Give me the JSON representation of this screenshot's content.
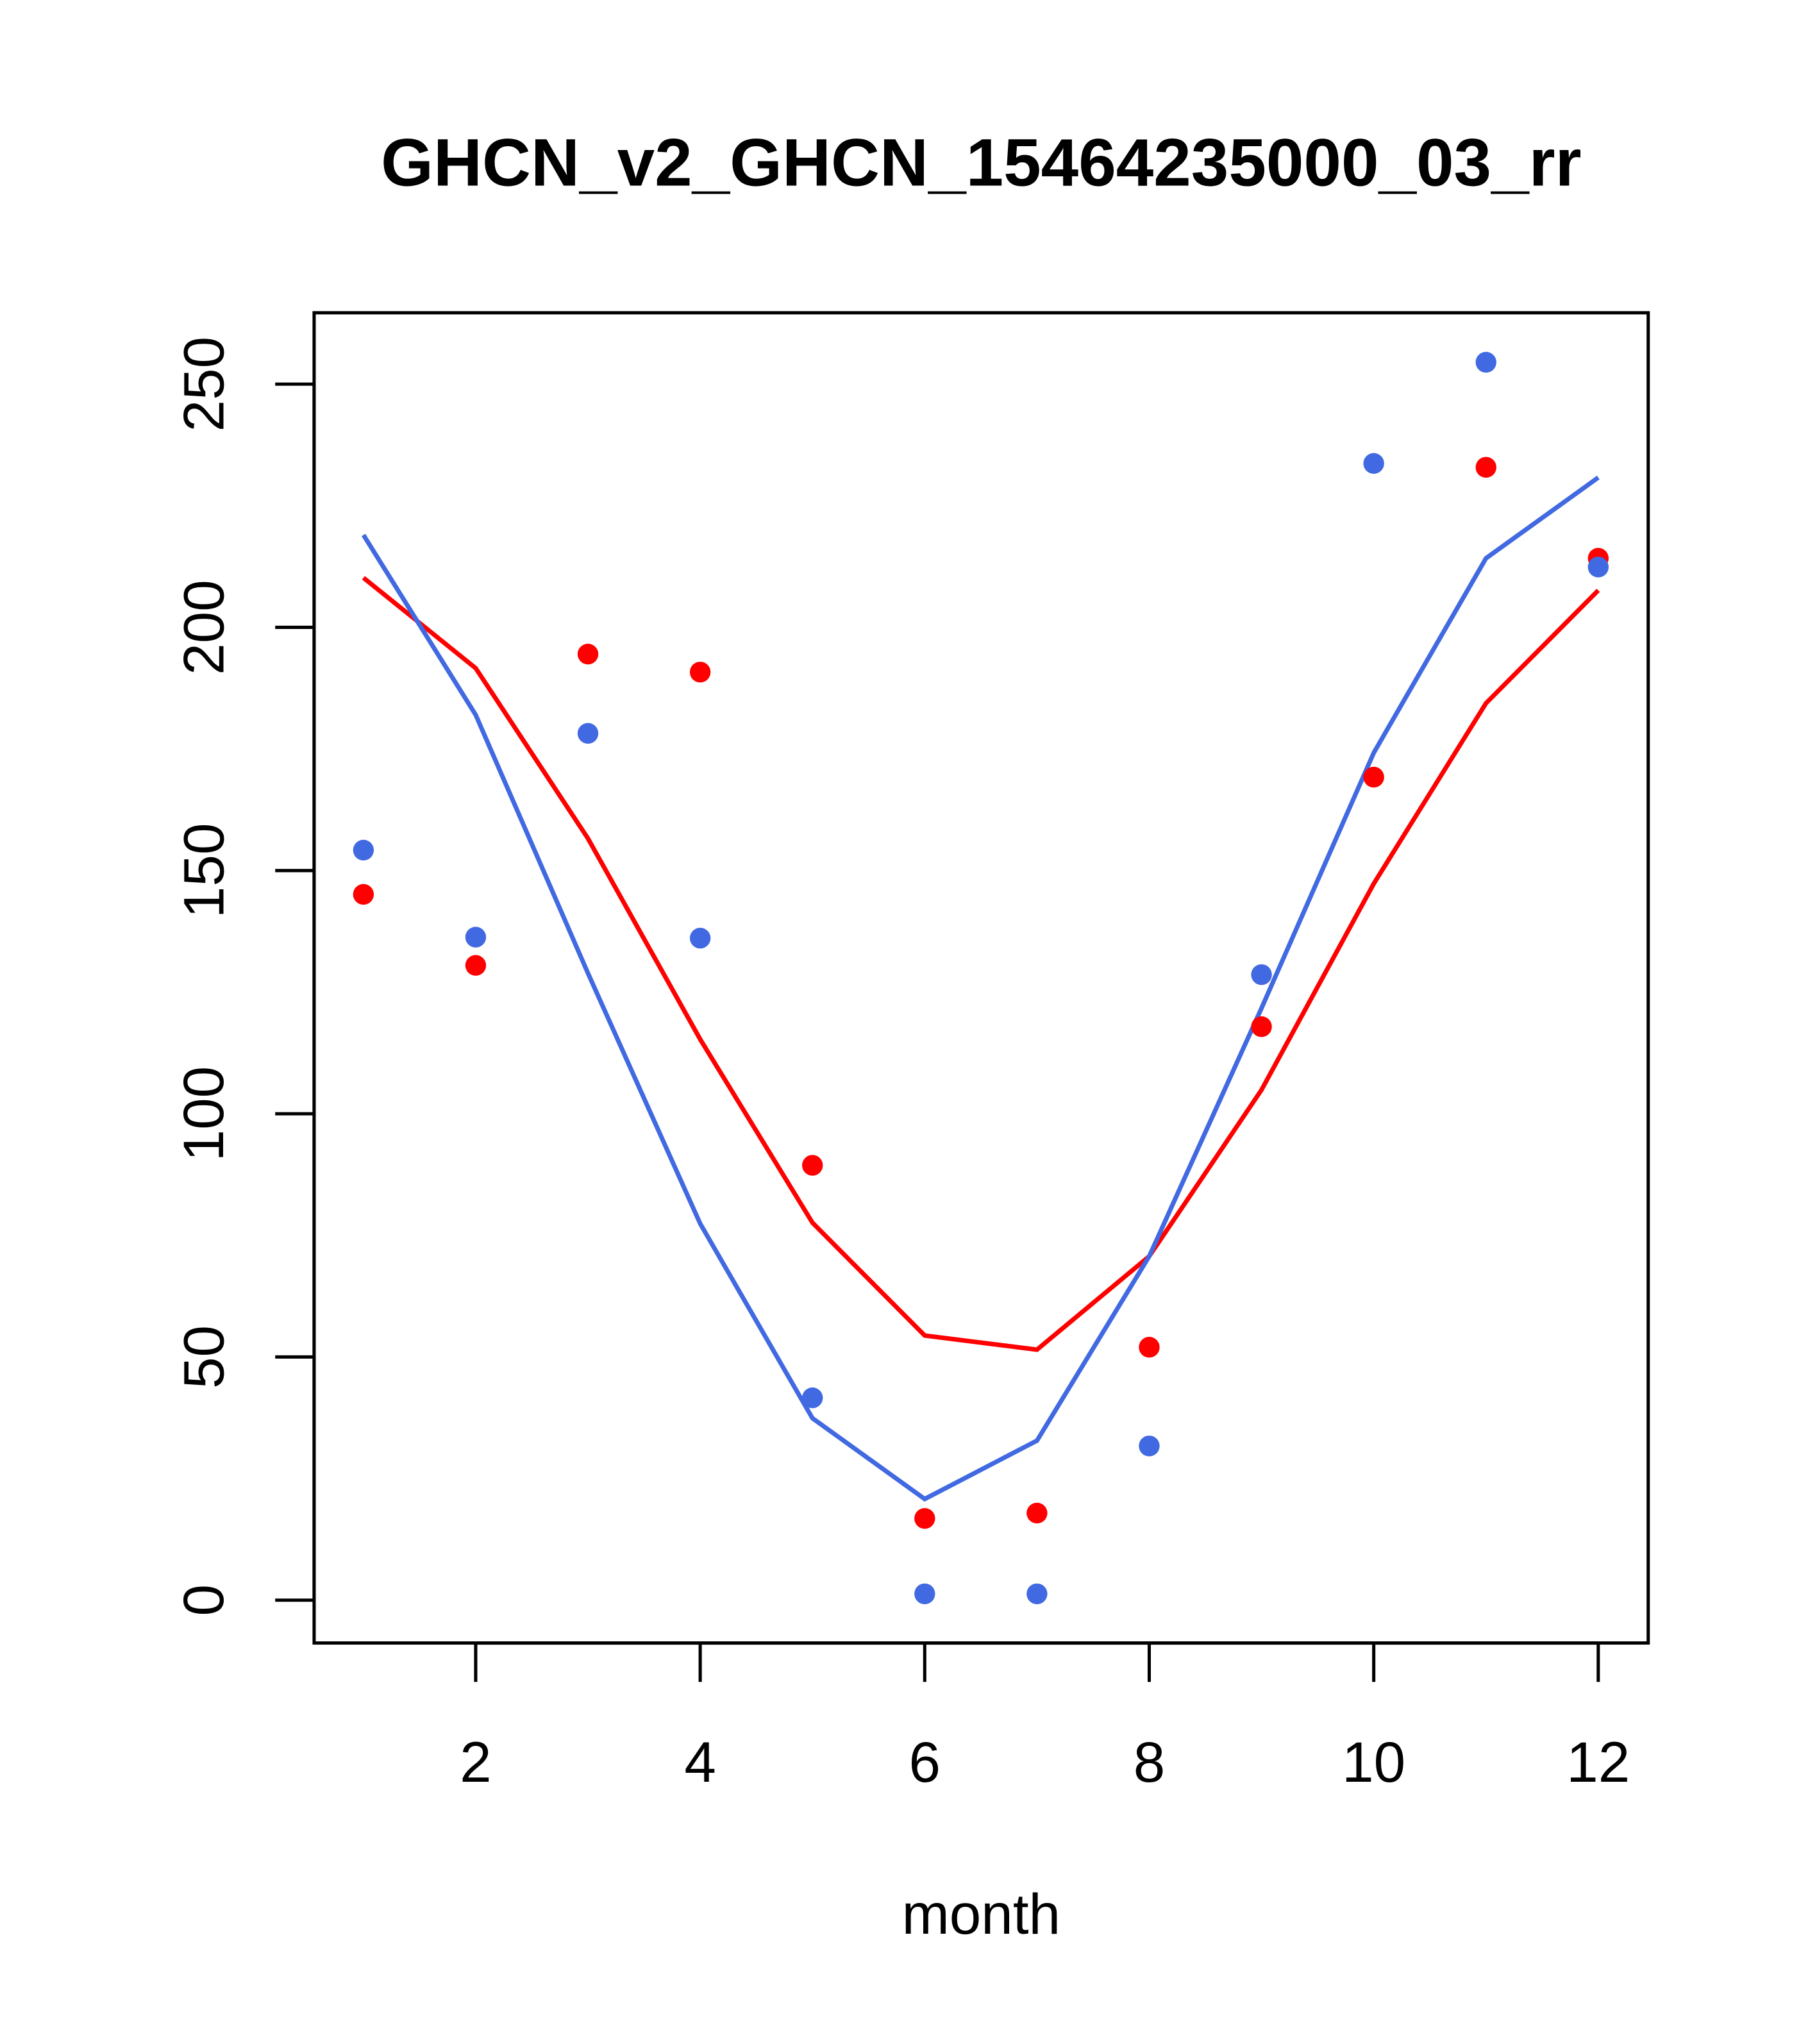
{
  "chart_data": {
    "type": "line",
    "title": "GHCN_v2_GHCN_15464235000_03_rr",
    "xlabel": "month",
    "ylabel": "",
    "xlim": [
      0.56,
      12.44
    ],
    "ylim": [
      -8.6,
      264.5
    ],
    "x_ticks": [
      2,
      4,
      6,
      8,
      10,
      12
    ],
    "y_ticks": [
      0,
      50,
      100,
      150,
      200,
      250
    ],
    "x": [
      1,
      2,
      3,
      4,
      5,
      6,
      7,
      8,
      9,
      10,
      11,
      12
    ],
    "series": [
      {
        "name": "red points",
        "kind": "points",
        "color": "#ff0000",
        "values": [
          145.1,
          130.5,
          194.5,
          190.8,
          89.4,
          16.8,
          17.9,
          52.0,
          117.9,
          169.2,
          232.9,
          214.2
        ]
      },
      {
        "name": "blue points",
        "kind": "points",
        "color": "#4169e1",
        "values": [
          154.2,
          136.3,
          178.2,
          136.1,
          41.6,
          1.3,
          1.3,
          31.7,
          128.6,
          233.7,
          254.5,
          212.4
        ]
      },
      {
        "name": "red line",
        "kind": "line",
        "color": "#ff0000",
        "values": [
          210.2,
          191.6,
          156.6,
          115.3,
          77.6,
          54.4,
          51.5,
          70.7,
          104.9,
          147.3,
          184.4,
          207.6
        ]
      },
      {
        "name": "blue line",
        "kind": "line",
        "color": "#4169e1",
        "values": [
          219.0,
          182.0,
          128.9,
          77.4,
          37.4,
          20.8,
          32.8,
          70.7,
          121.7,
          174.2,
          214.2,
          230.8
        ]
      }
    ]
  }
}
